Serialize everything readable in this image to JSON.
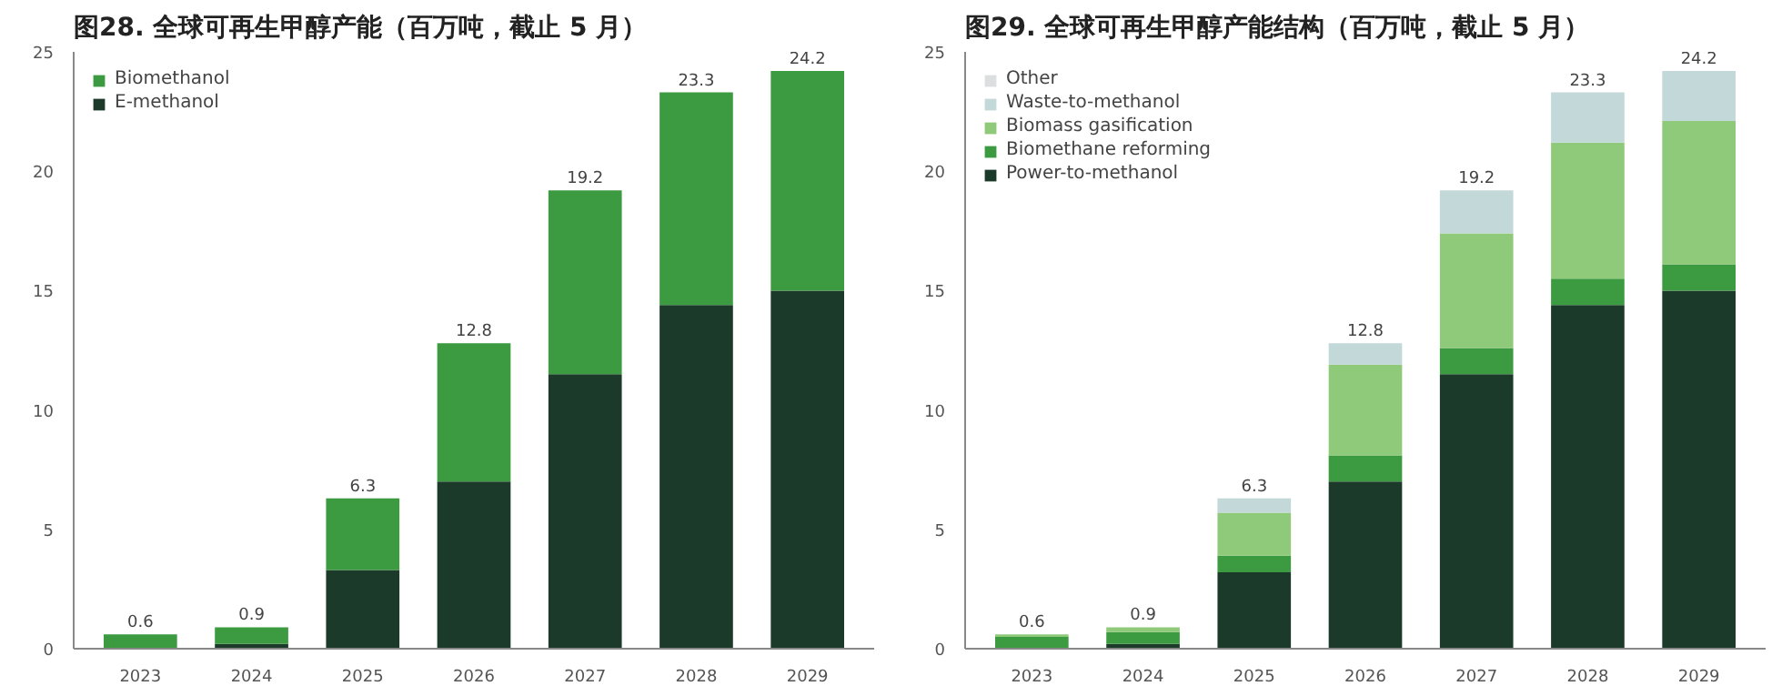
{
  "chart_data": [
    {
      "type": "bar",
      "title": "图28. 全球可再生甲醇产能（百万吨，截止 5 月）",
      "categories": [
        "2023",
        "2024",
        "2025",
        "2026",
        "2027",
        "2028",
        "2029"
      ],
      "stacked": true,
      "series": [
        {
          "name": "E-methanol",
          "color": "#1b3a2a",
          "values": [
            0.0,
            0.2,
            3.3,
            7.0,
            11.5,
            14.4,
            15.0
          ]
        },
        {
          "name": "Biomethanol",
          "color": "#3c9a40",
          "values": [
            0.6,
            0.7,
            3.0,
            5.8,
            7.7,
            8.9,
            9.2
          ]
        }
      ],
      "totals": [
        "0.6",
        "0.9",
        "6.3",
        "12.8",
        "19.2",
        "23.3",
        "24.2"
      ],
      "ylim": [
        0,
        25
      ],
      "yticks": [
        0,
        5,
        10,
        15,
        20,
        25
      ],
      "grid": false,
      "legend": "top left"
    },
    {
      "type": "bar",
      "title": "图29. 全球可再生甲醇产能结构（百万吨，截止 5 月）",
      "categories": [
        "2023",
        "2024",
        "2025",
        "2026",
        "2027",
        "2028",
        "2029"
      ],
      "stacked": true,
      "series": [
        {
          "name": "Power-to-methanol",
          "color": "#1b3a2a",
          "values": [
            0.0,
            0.2,
            3.2,
            7.0,
            11.5,
            14.4,
            15.0
          ]
        },
        {
          "name": "Biomethane reforming",
          "color": "#3c9a40",
          "values": [
            0.5,
            0.5,
            0.7,
            1.1,
            1.1,
            1.1,
            1.1
          ]
        },
        {
          "name": "Biomass gasification",
          "color": "#8fc97a",
          "values": [
            0.1,
            0.2,
            1.8,
            3.8,
            4.8,
            5.7,
            6.0
          ]
        },
        {
          "name": "Waste-to-methanol",
          "color": "#c3d8d8",
          "values": [
            0.0,
            0.0,
            0.6,
            0.9,
            1.8,
            2.1,
            2.1
          ]
        },
        {
          "name": "Other",
          "color": "#dcdfe0",
          "values": [
            0,
            0,
            0,
            0,
            0,
            0,
            0
          ]
        }
      ],
      "totals": [
        "0.6",
        "0.9",
        "6.3",
        "12.8",
        "19.2",
        "23.3",
        "24.2"
      ],
      "ylim": [
        0,
        25
      ],
      "yticks": [
        0,
        5,
        10,
        15,
        20,
        25
      ],
      "grid": false,
      "legend": "top left"
    }
  ]
}
